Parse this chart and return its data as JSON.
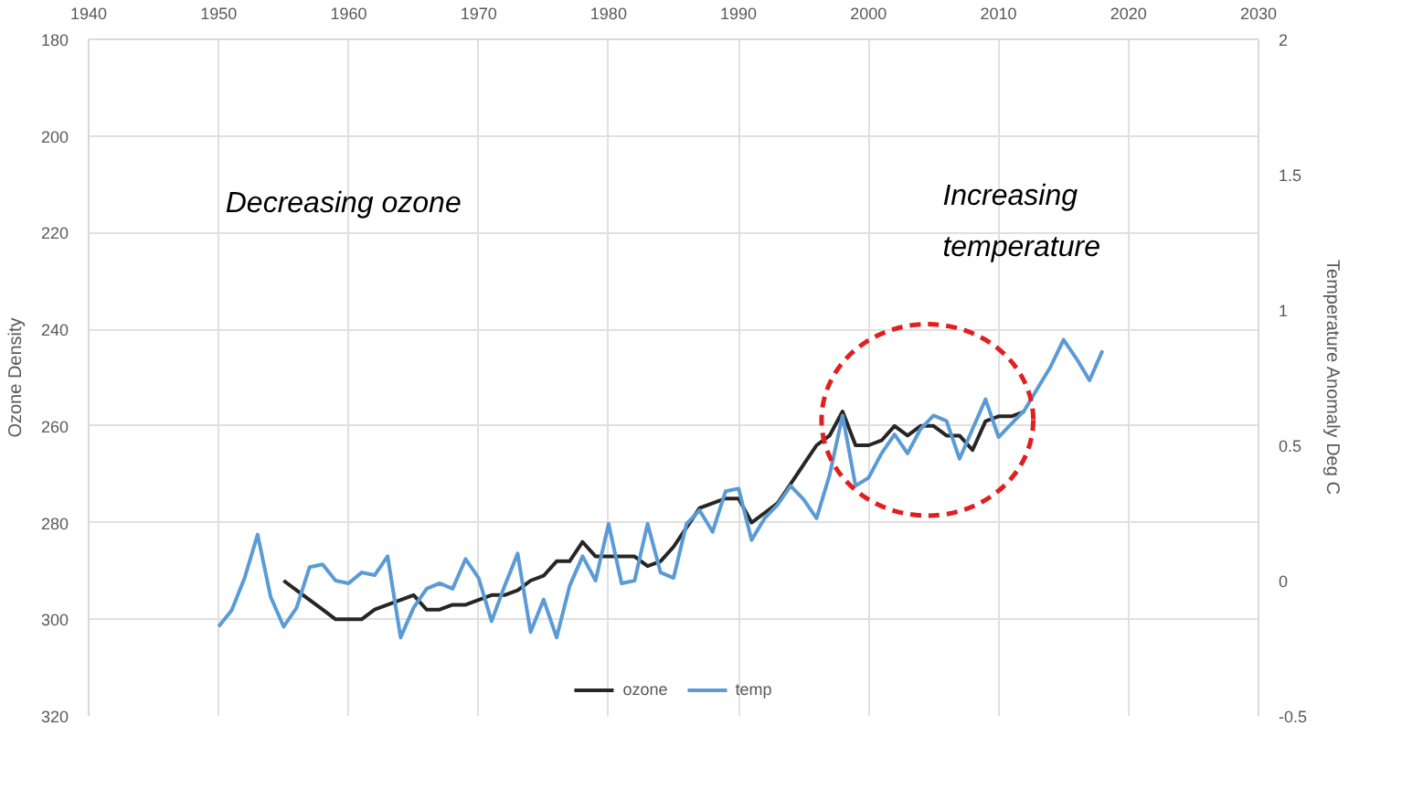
{
  "chart_data": {
    "type": "line",
    "ylabel": "Ozone Density",
    "y2label": "Temperature Anomaly Deg C",
    "annotations": [
      "Decreasing ozone",
      "Increasing temperature"
    ],
    "xlim": [
      1940,
      2030
    ],
    "xticks": [
      1940,
      1950,
      1960,
      1970,
      1980,
      1990,
      2000,
      2010,
      2020,
      2030
    ],
    "ylim": [
      320,
      180
    ],
    "yticks": [
      180,
      200,
      220,
      240,
      260,
      280,
      300,
      320
    ],
    "y2lim": [
      -0.5,
      2
    ],
    "y2ticks": [
      -0.5,
      0,
      0.5,
      1,
      1.5,
      2
    ],
    "grid": true,
    "legend": "bottom",
    "series": [
      {
        "name": "ozone",
        "color": "#262626",
        "x": [
          1955,
          1956,
          1957,
          1958,
          1959,
          1960,
          1961,
          1962,
          1963,
          1964,
          1965,
          1966,
          1967,
          1968,
          1969,
          1970,
          1971,
          1972,
          1973,
          1974,
          1975,
          1976,
          1977,
          1978,
          1979,
          1980,
          1981,
          1982,
          1983,
          1984,
          1985,
          1986,
          1987,
          1988,
          1989,
          1990,
          1991,
          1992,
          1993,
          1994,
          1995,
          1996,
          1997,
          1998,
          1999,
          2000,
          2001,
          2002,
          2003,
          2004,
          2005,
          2006,
          2007,
          2008,
          2009,
          2010,
          2011,
          2012
        ],
        "values": [
          292,
          294,
          296,
          298,
          300,
          300,
          300,
          298,
          297,
          296,
          295,
          298,
          298,
          297,
          297,
          296,
          295,
          295,
          294,
          292,
          291,
          288,
          288,
          284,
          287,
          287,
          287,
          287,
          289,
          288,
          285,
          281,
          277,
          276,
          275,
          275,
          280,
          278,
          276,
          272,
          268,
          264,
          262,
          257,
          264,
          264,
          263,
          260,
          262,
          260,
          260,
          262,
          262,
          265,
          259,
          258,
          258,
          257
        ]
      },
      {
        "name": "temp",
        "color": "#5b9bd5",
        "axis": "y2",
        "x": [
          1950,
          1951,
          1952,
          1953,
          1954,
          1955,
          1956,
          1957,
          1958,
          1959,
          1960,
          1961,
          1962,
          1963,
          1964,
          1965,
          1966,
          1967,
          1968,
          1969,
          1970,
          1971,
          1972,
          1973,
          1974,
          1975,
          1976,
          1977,
          1978,
          1979,
          1980,
          1981,
          1982,
          1983,
          1984,
          1985,
          1986,
          1987,
          1988,
          1989,
          1990,
          1991,
          1992,
          1993,
          1994,
          1995,
          1996,
          1997,
          1998,
          1999,
          2000,
          2001,
          2002,
          2003,
          2004,
          2005,
          2006,
          2007,
          2008,
          2009,
          2010,
          2011,
          2012,
          2013,
          2014,
          2015,
          2016,
          2017,
          2018
        ],
        "values": [
          -0.17,
          -0.11,
          0.01,
          0.17,
          -0.06,
          -0.17,
          -0.1,
          0.05,
          0.06,
          0.0,
          -0.01,
          0.03,
          0.02,
          0.09,
          -0.21,
          -0.1,
          -0.03,
          -0.01,
          -0.03,
          0.08,
          0.01,
          -0.15,
          -0.02,
          0.1,
          -0.19,
          -0.07,
          -0.21,
          -0.02,
          0.09,
          0.0,
          0.21,
          -0.01,
          0.0,
          0.21,
          0.03,
          0.01,
          0.21,
          0.26,
          0.18,
          0.33,
          0.34,
          0.15,
          0.23,
          0.28,
          0.35,
          0.3,
          0.23,
          0.39,
          0.61,
          0.35,
          0.38,
          0.47,
          0.54,
          0.47,
          0.56,
          0.61,
          0.59,
          0.45,
          0.56,
          0.67,
          0.53,
          0.58,
          0.63,
          0.71,
          0.79,
          0.89,
          0.82,
          0.74,
          0.85
        ]
      }
    ]
  }
}
